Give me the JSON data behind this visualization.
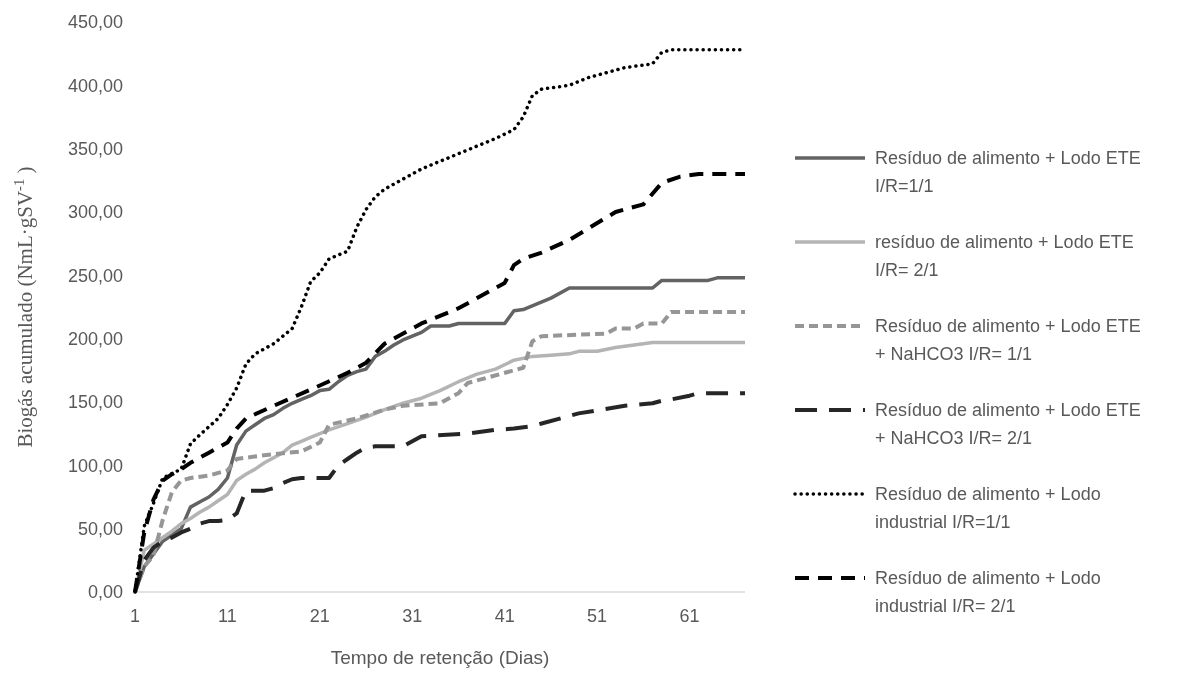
{
  "chart_data": {
    "type": "line",
    "xlabel": "Tempo de retenção (Dias)",
    "ylabel": "Biogás acumulado (NmL·gSV$^{-1}$ )",
    "legend": "right",
    "xlim": [
      1,
      67
    ],
    "xticks": [
      1,
      11,
      21,
      31,
      41,
      51,
      61
    ],
    "ylim": [
      0,
      450
    ],
    "yticks": [
      {
        "value": 0,
        "label": "0,00"
      },
      {
        "value": 50,
        "label": "50,00"
      },
      {
        "value": 100,
        "label": "100,00"
      },
      {
        "value": 150,
        "label": "150,00"
      },
      {
        "value": 200,
        "label": "200,00"
      },
      {
        "value": 250,
        "label": "250,00"
      },
      {
        "value": 300,
        "label": "300,00"
      },
      {
        "value": 350,
        "label": "350,00"
      },
      {
        "value": 400,
        "label": "400,00"
      },
      {
        "value": 450,
        "label": "450,00"
      }
    ],
    "series": [
      {
        "name": "Resíduo de alimento + Lodo ETE I/R=1/1",
        "color": "#636363",
        "line_style": "solid",
        "x": [
          1,
          2,
          3,
          4,
          5,
          6,
          7,
          8,
          9,
          10,
          11,
          12,
          13,
          14,
          15,
          16,
          17,
          18,
          19,
          20,
          21,
          22,
          23,
          24,
          25,
          26,
          27,
          28,
          29,
          30,
          31,
          32,
          33,
          35,
          36,
          41,
          42,
          43,
          46,
          48,
          57,
          58,
          63,
          64,
          67
        ],
        "values": [
          0,
          20,
          30,
          40,
          45,
          50,
          67,
          71,
          75,
          81,
          90,
          116,
          127,
          132,
          137,
          140,
          145,
          149,
          152,
          155,
          159,
          160,
          166,
          171,
          174,
          176,
          186,
          190,
          195,
          199,
          202,
          205,
          210,
          210,
          212,
          212,
          222,
          223,
          232,
          240,
          240,
          246,
          246,
          248,
          248
        ]
      },
      {
        "name": "resíduo de alimento + Lodo ETE I/R= 2/1",
        "color": "#b4b4b4",
        "line_style": "solid",
        "x": [
          1,
          2,
          3,
          4,
          5,
          6,
          7,
          8,
          9,
          10,
          11,
          12,
          13,
          14,
          15,
          16,
          17,
          18,
          19,
          20,
          21,
          22,
          24,
          26,
          28,
          30,
          32,
          34,
          36,
          38,
          40,
          42,
          44,
          46,
          48,
          49,
          51,
          53,
          55,
          57,
          67
        ],
        "values": [
          0,
          33,
          38,
          43,
          48,
          54,
          58,
          63,
          67,
          72,
          77,
          88,
          93,
          97,
          102,
          106,
          110,
          116,
          119,
          122,
          125,
          128,
          133,
          138,
          144,
          149,
          153,
          159,
          166,
          172,
          176,
          183,
          186,
          187,
          188,
          190,
          190,
          193,
          195,
          197,
          197
        ]
      },
      {
        "name": "Resíduo de alimento + Lodo ETE + NaHCO3 I/R= 1/1",
        "color": "#969696",
        "line_style": "dashed",
        "x": [
          1,
          2,
          3,
          4,
          5,
          6,
          7,
          9,
          11,
          12,
          15,
          19,
          21,
          22,
          25,
          28,
          30,
          34,
          36,
          37,
          43,
          44,
          45,
          52,
          53,
          55,
          56,
          58,
          59,
          67
        ],
        "values": [
          0,
          20,
          29,
          57,
          79,
          88,
          90,
          92,
          96,
          105,
          108,
          111,
          118,
          132,
          137,
          144,
          147,
          149,
          157,
          165,
          177,
          198,
          202,
          204,
          208,
          208,
          212,
          212,
          221,
          221
        ]
      },
      {
        "name": "Resíduo de alimento + Lodo ETE + NaHCO3 I/R= 2/1",
        "color": "#262626",
        "line_style": "dashed",
        "x": [
          1,
          2,
          3,
          4,
          5,
          6,
          7,
          8,
          9,
          10,
          11,
          12,
          13,
          14,
          15,
          16,
          17,
          18,
          19,
          22,
          23,
          24,
          25,
          26,
          27,
          30,
          32,
          37,
          40,
          42,
          44,
          45,
          49,
          54,
          57,
          58,
          59,
          61,
          62,
          67
        ],
        "values": [
          0,
          25,
          35,
          40,
          43,
          47,
          50,
          54,
          56,
          56,
          57,
          62,
          80,
          80,
          80,
          82,
          86,
          89,
          90,
          90,
          100,
          105,
          110,
          114,
          115,
          115,
          123,
          125,
          128,
          129,
          131,
          133,
          141,
          147,
          149,
          151,
          152,
          155,
          157,
          157
        ]
      },
      {
        "name": "Resíduo de alimento + Lodo industrial I/R=1/1",
        "color": "#000000",
        "line_style": "dotted",
        "x": [
          1,
          2,
          3,
          4,
          6,
          7,
          8,
          10,
          11,
          12,
          13,
          14,
          16,
          18,
          19,
          20,
          21,
          22,
          24,
          25,
          26,
          27,
          28,
          29,
          32,
          37,
          40,
          42,
          43,
          44,
          45,
          48,
          50,
          54,
          57,
          58,
          59,
          67
        ],
        "values": [
          0,
          52,
          70,
          90,
          97,
          117,
          124,
          137,
          148,
          161,
          180,
          188,
          196,
          208,
          225,
          245,
          252,
          263,
          269,
          288,
          302,
          312,
          318,
          322,
          334,
          349,
          358,
          365,
          375,
          392,
          397,
          400,
          406,
          414,
          417,
          426,
          428,
          428
        ]
      },
      {
        "name": "Resíduo de alimento + Lodo industrial I/R= 2/1",
        "color": "#000000",
        "line_style": "dashed",
        "x": [
          1,
          2,
          3,
          4,
          5,
          6,
          7,
          9,
          11,
          12,
          13,
          16,
          21,
          24,
          26,
          28,
          32,
          36,
          41,
          42,
          43,
          45,
          48,
          53,
          56,
          58,
          60,
          62,
          67
        ],
        "values": [
          0,
          47,
          73,
          88,
          93,
          97,
          102,
          110,
          118,
          129,
          137,
          147,
          163,
          173,
          181,
          196,
          212,
          224,
          244,
          258,
          263,
          268,
          278,
          300,
          306,
          323,
          328,
          330,
          330
        ]
      }
    ]
  }
}
